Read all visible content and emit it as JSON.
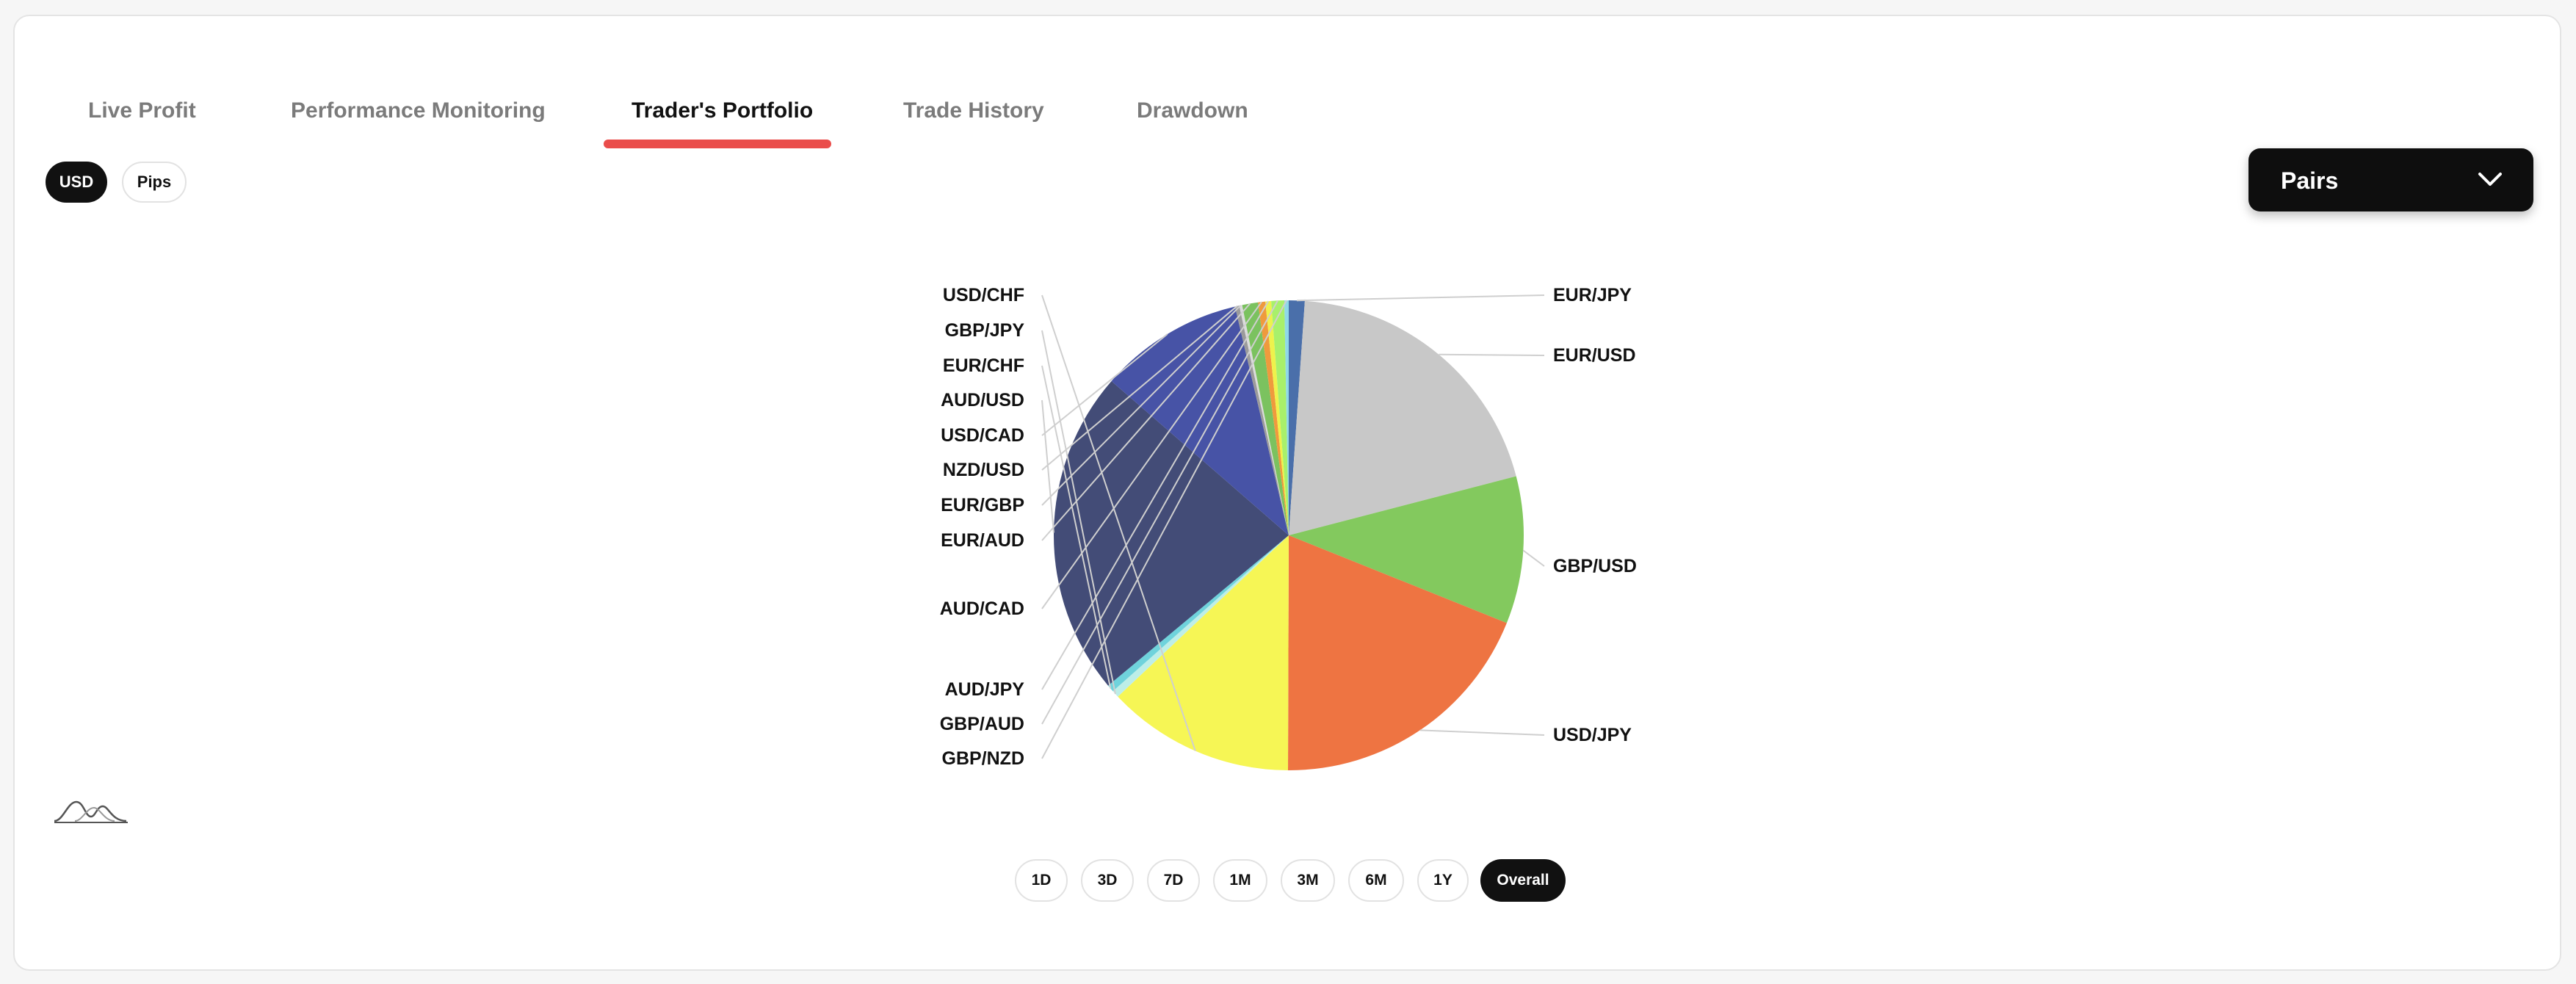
{
  "tabs": [
    {
      "label": "Live Profit",
      "active": false
    },
    {
      "label": "Performance Monitoring",
      "active": false
    },
    {
      "label": "Trader's Portfolio",
      "active": true
    },
    {
      "label": "Trade History",
      "active": false
    },
    {
      "label": "Drawdown",
      "active": false
    }
  ],
  "units": {
    "usd": "USD",
    "pips": "Pips",
    "selected": "USD"
  },
  "dropdown": {
    "label": "Pairs",
    "icon": "chevron-down-icon"
  },
  "colors": {
    "accent": "#ea4d4b",
    "dark": "#111111"
  },
  "chart_data": {
    "type": "pie",
    "slices": [
      {
        "label": "EUR/JPY",
        "value": 1.1,
        "color": "#4a6faa"
      },
      {
        "label": "EUR/USD",
        "value": 20.0,
        "color": "#c8c8c8"
      },
      {
        "label": "GBP/USD",
        "value": 10.2,
        "color": "#83c95e"
      },
      {
        "label": "USD/JPY",
        "value": 19.1,
        "color": "#ee7442"
      },
      {
        "label": "USD/CHF",
        "value": 13.0,
        "color": "#f6f655"
      },
      {
        "label": "GBP/JPY",
        "value": 0.5,
        "color": "#bdeee8"
      },
      {
        "label": "EUR/CHF",
        "value": 0.5,
        "color": "#6fd3dc"
      },
      {
        "label": "AUD/USD",
        "value": 22.6,
        "color": "#434c77"
      },
      {
        "label": "USD/CAD",
        "value": 10.0,
        "color": "#4753a6"
      },
      {
        "label": "NZD/USD",
        "value": 0.3,
        "color": "#9b9b9b"
      },
      {
        "label": "EUR/GBP",
        "value": 0.2,
        "color": "#dcdcdc"
      },
      {
        "label": "EUR/AUD",
        "value": 1.1,
        "color": "#7bc25f"
      },
      {
        "label": "AUD/CAD",
        "value": 0.5,
        "color": "#ef9a3d"
      },
      {
        "label": "AUD/JPY",
        "value": 0.4,
        "color": "#eef24c"
      },
      {
        "label": "GBP/AUD",
        "value": 0.9,
        "color": "#a8f06b"
      },
      {
        "label": "GBP/NZD",
        "value": 0.3,
        "color": "#8fd9e8"
      }
    ]
  },
  "periods": [
    {
      "label": "1D",
      "active": false
    },
    {
      "label": "3D",
      "active": false
    },
    {
      "label": "7D",
      "active": false
    },
    {
      "label": "1M",
      "active": false
    },
    {
      "label": "3M",
      "active": false
    },
    {
      "label": "6M",
      "active": false
    },
    {
      "label": "1Y",
      "active": false
    },
    {
      "label": "Overall",
      "active": true
    }
  ],
  "icons": {
    "chart_toggle": "waves-icon"
  }
}
